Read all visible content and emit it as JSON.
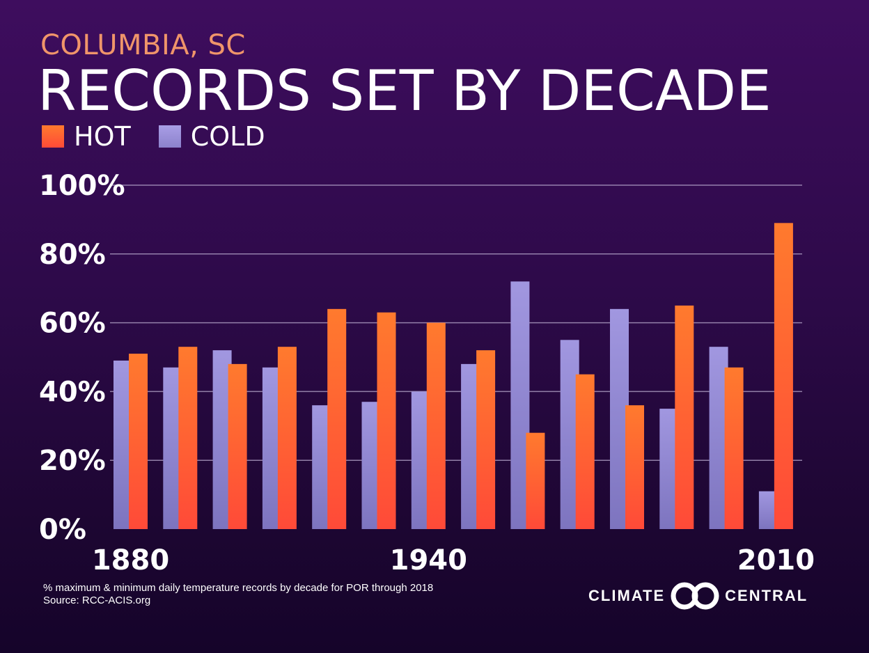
{
  "header": {
    "subtitle": "COLUMBIA, SC",
    "title": "RECORDS SET BY DECADE"
  },
  "legend": {
    "hot_label": "HOT",
    "cold_label": "COLD"
  },
  "colors": {
    "hot": "#ff5a34",
    "cold": "#9a8fd8",
    "grid": "#b8a8cc",
    "axis_text": "#ffffff"
  },
  "chart_data": {
    "type": "bar",
    "categories": [
      "1880",
      "1890",
      "1900",
      "1910",
      "1920",
      "1930",
      "1940",
      "1950",
      "1960",
      "1970",
      "1980",
      "1990",
      "2000",
      "2010"
    ],
    "x_tick_labels": [
      {
        "index": 0,
        "label": "1880"
      },
      {
        "index": 6,
        "label": "1940"
      },
      {
        "index": 13,
        "label": "2010"
      }
    ],
    "series": [
      {
        "name": "COLD",
        "values": [
          49,
          47,
          52,
          47,
          36,
          37,
          40,
          48,
          72,
          55,
          64,
          35,
          53,
          11
        ]
      },
      {
        "name": "HOT",
        "values": [
          51,
          53,
          48,
          53,
          64,
          63,
          60,
          52,
          28,
          45,
          36,
          65,
          47,
          89
        ]
      }
    ],
    "ylim": [
      0,
      100
    ],
    "y_ticks": [
      0,
      20,
      40,
      60,
      80,
      100
    ],
    "y_tick_labels": [
      "0%",
      "20%",
      "40%",
      "60%",
      "80%",
      "100%"
    ],
    "grid": true
  },
  "footer": {
    "note_line1": "% maximum & minimum daily temperature records by decade for POR through 2018",
    "note_line2": "Source: RCC-ACIS.org",
    "logo_left": "CLIMATE",
    "logo_right": "CENTRAL"
  }
}
